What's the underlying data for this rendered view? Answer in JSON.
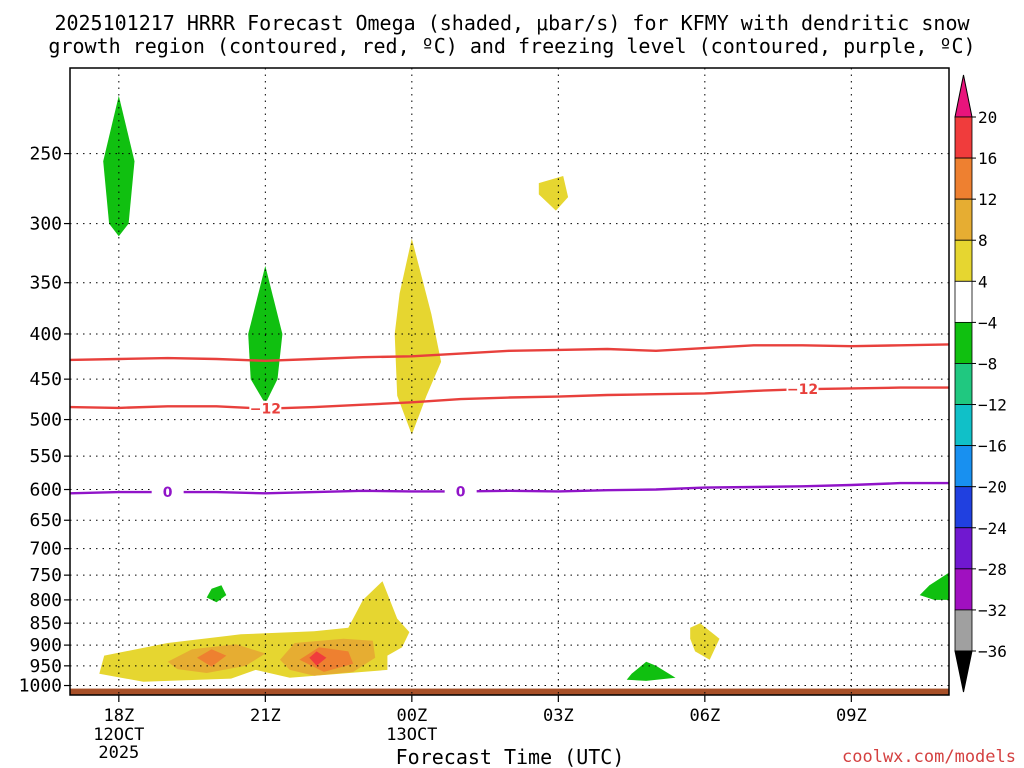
{
  "title_line1": "2025101217 HRRR Forecast Omega (shaded, μbar/s) for KFMY with dendritic snow",
  "title_line2": "growth region (contoured, red, ºC) and freezing level (contoured, purple, ºC)",
  "watermark": "coolwx.com/models",
  "chart_data": {
    "type": "heatmap",
    "title": "2025101217 HRRR Forecast Omega (shaded, μbar/s) for KFMY with dendritic snow growth region (contoured, red, ºC) and freezing level (contoured, purple, ºC)",
    "xlabel": "Forecast Time (UTC)",
    "ylabel": "",
    "x_range_hours": [
      -1,
      17
    ],
    "x_ticks": [
      {
        "hour": 0,
        "label": "18Z",
        "sub": [
          "12OCT",
          "2025"
        ]
      },
      {
        "hour": 3,
        "label": "21Z",
        "sub": []
      },
      {
        "hour": 6,
        "label": "00Z",
        "sub": [
          "13OCT"
        ]
      },
      {
        "hour": 9,
        "label": "03Z",
        "sub": []
      },
      {
        "hour": 12,
        "label": "06Z",
        "sub": []
      },
      {
        "hour": 15,
        "label": "09Z",
        "sub": []
      }
    ],
    "y_scale": "log",
    "y_range_mb": [
      1025,
      200
    ],
    "y_ticks": [
      250,
      300,
      350,
      400,
      450,
      500,
      550,
      600,
      650,
      700,
      750,
      800,
      850,
      900,
      950,
      1000
    ],
    "grid": true,
    "colorbar": {
      "labels": [
        "20",
        "16",
        "12",
        "8",
        "4",
        "−4",
        "−8",
        "−12",
        "−16",
        "−20",
        "−24",
        "−28",
        "−32",
        "−36"
      ],
      "colors": [
        "#ee3b8e",
        "#f03c3c",
        "#ee8030",
        "#e6ad32",
        "#e6d630",
        "#ffffff",
        "#10c010",
        "#20c880",
        "#10c0c8",
        "#1890f0",
        "#2040e0",
        "#7018d0",
        "#a010c0",
        "#a0a0a0"
      ],
      "top_arrow_color": "#e8147c",
      "bottom_arrow_color": "#000000"
    },
    "contours": [
      {
        "name": "-12",
        "color": "#e8403c",
        "label": "−12",
        "points": [
          [
            -1,
            428
          ],
          [
            0,
            427
          ],
          [
            1,
            426
          ],
          [
            2,
            427
          ],
          [
            3,
            429
          ],
          [
            4,
            427
          ],
          [
            5,
            425
          ],
          [
            6,
            424
          ],
          [
            7,
            421
          ],
          [
            8,
            418
          ],
          [
            9,
            417
          ],
          [
            10,
            416
          ],
          [
            11,
            418
          ],
          [
            12,
            415
          ],
          [
            13,
            412
          ],
          [
            14,
            412
          ],
          [
            15,
            413
          ],
          [
            16,
            412
          ],
          [
            17,
            411
          ]
        ],
        "labels_at": []
      },
      {
        "name": "-12b",
        "color": "#e8403c",
        "label": "−12",
        "points": [
          [
            -1,
            484
          ],
          [
            0,
            485
          ],
          [
            1,
            483
          ],
          [
            2,
            483
          ],
          [
            3,
            486
          ],
          [
            4,
            484
          ],
          [
            5,
            481
          ],
          [
            6,
            478
          ],
          [
            7,
            474
          ],
          [
            8,
            472
          ],
          [
            9,
            471
          ],
          [
            10,
            469
          ],
          [
            11,
            468
          ],
          [
            12,
            467
          ],
          [
            13,
            464
          ],
          [
            14,
            462
          ],
          [
            15,
            461
          ],
          [
            16,
            460
          ],
          [
            17,
            460
          ]
        ],
        "labels_at": [
          3,
          14
        ]
      },
      {
        "name": "0",
        "color": "#9014c8",
        "label": "0",
        "points": [
          [
            -1,
            606
          ],
          [
            0,
            604
          ],
          [
            1,
            604
          ],
          [
            2,
            604
          ],
          [
            3,
            606
          ],
          [
            4,
            604
          ],
          [
            5,
            602
          ],
          [
            6,
            603
          ],
          [
            7,
            603
          ],
          [
            8,
            602
          ],
          [
            9,
            603
          ],
          [
            10,
            601
          ],
          [
            11,
            600
          ],
          [
            12,
            597
          ],
          [
            13,
            596
          ],
          [
            14,
            595
          ],
          [
            15,
            593
          ],
          [
            16,
            590
          ],
          [
            17,
            590
          ]
        ],
        "labels_at": [
          1,
          7
        ]
      }
    ],
    "shaded_regions": [
      {
        "value": -6,
        "color": "#10c010",
        "points": [
          [
            0,
            215
          ],
          [
            0.32,
            255
          ],
          [
            0.2,
            300
          ],
          [
            0,
            310
          ],
          [
            -0.2,
            300
          ],
          [
            -0.32,
            255
          ]
        ]
      },
      {
        "value": -6,
        "color": "#10c010",
        "points": [
          [
            3,
            335
          ],
          [
            3.35,
            400
          ],
          [
            3.25,
            450
          ],
          [
            3,
            480
          ],
          [
            2.7,
            450
          ],
          [
            2.65,
            400
          ]
        ]
      },
      {
        "value": 6,
        "color": "#e6d630",
        "points": [
          [
            6,
            312
          ],
          [
            6.4,
            380
          ],
          [
            6.6,
            430
          ],
          [
            6.3,
            470
          ],
          [
            6,
            520
          ],
          [
            5.7,
            470
          ],
          [
            5.65,
            400
          ],
          [
            5.75,
            360
          ]
        ]
      },
      {
        "value": 6,
        "color": "#e6d630",
        "points": [
          [
            8.6,
            270
          ],
          [
            9.1,
            265
          ],
          [
            9.2,
            280
          ],
          [
            8.95,
            290
          ],
          [
            8.6,
            278
          ]
        ]
      },
      {
        "value": -6,
        "color": "#10c010",
        "points": [
          [
            1.9,
            777
          ],
          [
            2.1,
            770
          ],
          [
            2.2,
            790
          ],
          [
            2.0,
            805
          ],
          [
            1.8,
            795
          ]
        ]
      },
      {
        "value": -6,
        "color": "#10c010",
        "points": [
          [
            16.6,
            770
          ],
          [
            17,
            745
          ],
          [
            17,
            800
          ],
          [
            16.7,
            800
          ],
          [
            16.4,
            790
          ]
        ]
      },
      {
        "value": 6,
        "color": "#e6d630",
        "points": [
          [
            11.7,
            860
          ],
          [
            11.9,
            850
          ],
          [
            12.3,
            885
          ],
          [
            12.1,
            935
          ],
          [
            11.8,
            915
          ],
          [
            11.7,
            885
          ]
        ]
      },
      {
        "value": -6,
        "color": "#10c010",
        "points": [
          [
            10.5,
            970
          ],
          [
            10.8,
            940
          ],
          [
            11,
            950
          ],
          [
            11.4,
            980
          ],
          [
            10.8,
            988
          ],
          [
            10.4,
            985
          ]
        ]
      },
      {
        "value": 6,
        "color": "#e6d630",
        "points": [
          [
            -0.4,
            970
          ],
          [
            -0.3,
            925
          ],
          [
            1,
            895
          ],
          [
            2.5,
            875
          ],
          [
            4,
            868
          ],
          [
            4.7,
            860
          ],
          [
            5.0,
            800
          ],
          [
            5.4,
            762
          ],
          [
            5.7,
            840
          ],
          [
            5.95,
            870
          ],
          [
            5.8,
            905
          ],
          [
            5.5,
            925
          ],
          [
            5.5,
            960
          ],
          [
            3.5,
            980
          ],
          [
            2.8,
            960
          ],
          [
            2.3,
            982
          ],
          [
            0.5,
            990
          ]
        ]
      },
      {
        "value": 10,
        "color": "#e6ad32",
        "points": [
          [
            1,
            940
          ],
          [
            1.5,
            910
          ],
          [
            2.4,
            898
          ],
          [
            3,
            920
          ],
          [
            2.6,
            950
          ],
          [
            1.8,
            968
          ],
          [
            1.2,
            958
          ]
        ]
      },
      {
        "value": 10,
        "color": "#e6ad32",
        "points": [
          [
            3.3,
            935
          ],
          [
            3.6,
            895
          ],
          [
            4.6,
            885
          ],
          [
            5.2,
            890
          ],
          [
            5.25,
            930
          ],
          [
            4.8,
            965
          ],
          [
            4,
            975
          ],
          [
            3.5,
            960
          ]
        ]
      },
      {
        "value": 14,
        "color": "#ee8030",
        "points": [
          [
            1.6,
            930
          ],
          [
            1.9,
            910
          ],
          [
            2.2,
            925
          ],
          [
            1.9,
            952
          ]
        ]
      },
      {
        "value": 14,
        "color": "#ee8030",
        "points": [
          [
            3.7,
            935
          ],
          [
            4.1,
            905
          ],
          [
            4.7,
            915
          ],
          [
            4.8,
            945
          ],
          [
            4.2,
            965
          ]
        ]
      },
      {
        "value": 18,
        "color": "#f03c3c",
        "points": [
          [
            3.9,
            930
          ],
          [
            4.05,
            915
          ],
          [
            4.25,
            930
          ],
          [
            4.05,
            950
          ]
        ]
      }
    ],
    "terrain": {
      "color": "#a85028"
    }
  }
}
